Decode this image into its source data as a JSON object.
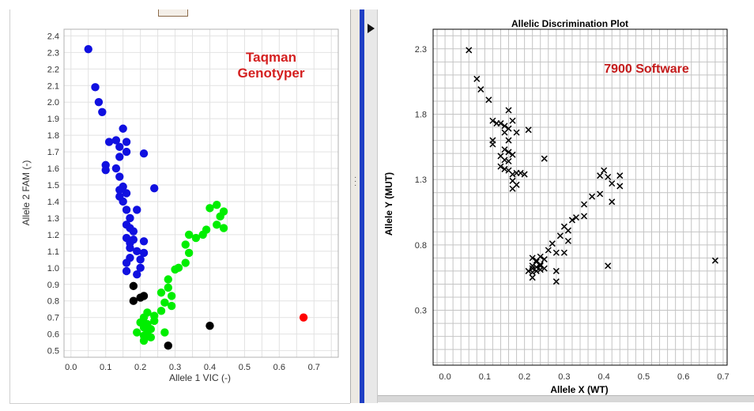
{
  "chart_data": [
    {
      "type": "scatter",
      "title": "",
      "annotation": [
        "Taqman",
        "Genotyper"
      ],
      "xlabel": "Allele 1 VIC (-)",
      "ylabel": "Allele 2 FAM (-)",
      "xlim": [
        -0.02,
        0.77
      ],
      "ylim": [
        0.46,
        2.44
      ],
      "xticks": [
        "0.0",
        "0.1",
        "0.2",
        "0.3",
        "0.4",
        "0.5",
        "0.6",
        "0.7"
      ],
      "yticks": [
        "0.5",
        "0.6",
        "0.7",
        "0.8",
        "0.9",
        "1.0",
        "1.1",
        "1.2",
        "1.3",
        "1.4",
        "1.5",
        "1.6",
        "1.7",
        "1.8",
        "1.9",
        "2.0",
        "2.1",
        "2.2",
        "2.3",
        "2.4"
      ],
      "grid": true,
      "series": [
        {
          "color": "#1010e0",
          "points": [
            [
              0.05,
              2.32
            ],
            [
              0.07,
              2.09
            ],
            [
              0.08,
              2.0
            ],
            [
              0.09,
              1.94
            ],
            [
              0.11,
              1.76
            ],
            [
              0.13,
              1.77
            ],
            [
              0.14,
              1.73
            ],
            [
              0.16,
              1.76
            ],
            [
              0.15,
              1.84
            ],
            [
              0.14,
              1.67
            ],
            [
              0.16,
              1.7
            ],
            [
              0.21,
              1.69
            ],
            [
              0.1,
              1.62
            ],
            [
              0.1,
              1.59
            ],
            [
              0.13,
              1.6
            ],
            [
              0.14,
              1.55
            ],
            [
              0.15,
              1.49
            ],
            [
              0.14,
              1.47
            ],
            [
              0.16,
              1.45
            ],
            [
              0.14,
              1.43
            ],
            [
              0.15,
              1.4
            ],
            [
              0.16,
              1.35
            ],
            [
              0.19,
              1.35
            ],
            [
              0.24,
              1.48
            ],
            [
              0.17,
              1.3
            ],
            [
              0.16,
              1.26
            ],
            [
              0.17,
              1.24
            ],
            [
              0.18,
              1.22
            ],
            [
              0.16,
              1.18
            ],
            [
              0.17,
              1.15
            ],
            [
              0.18,
              1.17
            ],
            [
              0.21,
              1.16
            ],
            [
              0.17,
              1.12
            ],
            [
              0.19,
              1.1
            ],
            [
              0.21,
              1.09
            ],
            [
              0.17,
              1.06
            ],
            [
              0.16,
              1.03
            ],
            [
              0.2,
              1.05
            ],
            [
              0.16,
              0.98
            ],
            [
              0.2,
              1.0
            ],
            [
              0.19,
              0.96
            ]
          ]
        },
        {
          "color": "#00ee00",
          "points": [
            [
              0.42,
              1.38
            ],
            [
              0.4,
              1.36
            ],
            [
              0.44,
              1.34
            ],
            [
              0.43,
              1.31
            ],
            [
              0.42,
              1.26
            ],
            [
              0.44,
              1.24
            ],
            [
              0.39,
              1.23
            ],
            [
              0.34,
              1.2
            ],
            [
              0.38,
              1.2
            ],
            [
              0.36,
              1.18
            ],
            [
              0.33,
              1.14
            ],
            [
              0.34,
              1.09
            ],
            [
              0.33,
              1.03
            ],
            [
              0.3,
              0.99
            ],
            [
              0.31,
              1.0
            ],
            [
              0.28,
              0.93
            ],
            [
              0.28,
              0.88
            ],
            [
              0.26,
              0.85
            ],
            [
              0.29,
              0.83
            ],
            [
              0.27,
              0.79
            ],
            [
              0.29,
              0.77
            ],
            [
              0.26,
              0.74
            ],
            [
              0.22,
              0.73
            ],
            [
              0.24,
              0.71
            ],
            [
              0.21,
              0.7
            ],
            [
              0.2,
              0.67
            ],
            [
              0.22,
              0.66
            ],
            [
              0.21,
              0.64
            ],
            [
              0.23,
              0.63
            ],
            [
              0.19,
              0.61
            ],
            [
              0.22,
              0.61
            ],
            [
              0.27,
              0.61
            ],
            [
              0.21,
              0.59
            ],
            [
              0.23,
              0.58
            ],
            [
              0.21,
              0.56
            ],
            [
              0.24,
              0.68
            ]
          ]
        },
        {
          "color": "#000000",
          "points": [
            [
              0.18,
              0.89
            ],
            [
              0.18,
              0.8
            ],
            [
              0.2,
              0.82
            ],
            [
              0.21,
              0.83
            ],
            [
              0.4,
              0.65
            ],
            [
              0.28,
              0.53
            ]
          ]
        },
        {
          "color": "#ff0000",
          "points": [
            [
              0.67,
              0.7
            ]
          ]
        }
      ]
    },
    {
      "type": "scatter",
      "title": "Allelic Discrimination Plot",
      "annotation": [
        "7900 Software"
      ],
      "xlabel": "Allele X (WT)",
      "ylabel": "Allele Y (MUT)",
      "xlim": [
        -0.03,
        0.71
      ],
      "ylim": [
        -0.12,
        2.45
      ],
      "xticks": [
        "0.0",
        "0.1",
        "0.2",
        "0.3",
        "0.4",
        "0.5",
        "0.6",
        "0.7"
      ],
      "yticks": [
        "0.3",
        "0.8",
        "1.3",
        "1.8",
        "2.3"
      ],
      "grid": true,
      "series": [
        {
          "color": "#000000",
          "marker": "x",
          "points": [
            [
              0.06,
              2.29
            ],
            [
              0.08,
              2.07
            ],
            [
              0.09,
              1.99
            ],
            [
              0.11,
              1.91
            ],
            [
              0.12,
              1.75
            ],
            [
              0.13,
              1.73
            ],
            [
              0.14,
              1.73
            ],
            [
              0.15,
              1.71
            ],
            [
              0.16,
              1.69
            ],
            [
              0.17,
              1.75
            ],
            [
              0.16,
              1.83
            ],
            [
              0.21,
              1.68
            ],
            [
              0.15,
              1.66
            ],
            [
              0.18,
              1.66
            ],
            [
              0.12,
              1.6
            ],
            [
              0.12,
              1.57
            ],
            [
              0.16,
              1.6
            ],
            [
              0.15,
              1.53
            ],
            [
              0.16,
              1.51
            ],
            [
              0.17,
              1.49
            ],
            [
              0.14,
              1.48
            ],
            [
              0.15,
              1.45
            ],
            [
              0.16,
              1.44
            ],
            [
              0.14,
              1.4
            ],
            [
              0.15,
              1.38
            ],
            [
              0.16,
              1.37
            ],
            [
              0.17,
              1.34
            ],
            [
              0.18,
              1.35
            ],
            [
              0.19,
              1.35
            ],
            [
              0.2,
              1.34
            ],
            [
              0.25,
              1.46
            ],
            [
              0.17,
              1.29
            ],
            [
              0.18,
              1.26
            ],
            [
              0.17,
              1.23
            ],
            [
              0.4,
              1.37
            ],
            [
              0.39,
              1.33
            ],
            [
              0.41,
              1.32
            ],
            [
              0.44,
              1.33
            ],
            [
              0.42,
              1.27
            ],
            [
              0.44,
              1.25
            ],
            [
              0.37,
              1.17
            ],
            [
              0.39,
              1.19
            ],
            [
              0.42,
              1.13
            ],
            [
              0.35,
              1.11
            ],
            [
              0.33,
              1.01
            ],
            [
              0.32,
              0.99
            ],
            [
              0.35,
              1.02
            ],
            [
              0.3,
              0.94
            ],
            [
              0.31,
              0.91
            ],
            [
              0.29,
              0.87
            ],
            [
              0.27,
              0.81
            ],
            [
              0.31,
              0.83
            ],
            [
              0.26,
              0.76
            ],
            [
              0.28,
              0.74
            ],
            [
              0.3,
              0.74
            ],
            [
              0.22,
              0.7
            ],
            [
              0.24,
              0.71
            ],
            [
              0.25,
              0.69
            ],
            [
              0.23,
              0.68
            ],
            [
              0.23,
              0.67
            ],
            [
              0.24,
              0.65
            ],
            [
              0.22,
              0.64
            ],
            [
              0.23,
              0.63
            ],
            [
              0.24,
              0.64
            ],
            [
              0.22,
              0.62
            ],
            [
              0.21,
              0.6
            ],
            [
              0.22,
              0.59
            ],
            [
              0.24,
              0.61
            ],
            [
              0.25,
              0.62
            ],
            [
              0.23,
              0.6
            ],
            [
              0.22,
              0.55
            ],
            [
              0.28,
              0.6
            ],
            [
              0.28,
              0.52
            ],
            [
              0.41,
              0.64
            ],
            [
              0.68,
              0.68
            ]
          ]
        }
      ]
    }
  ]
}
